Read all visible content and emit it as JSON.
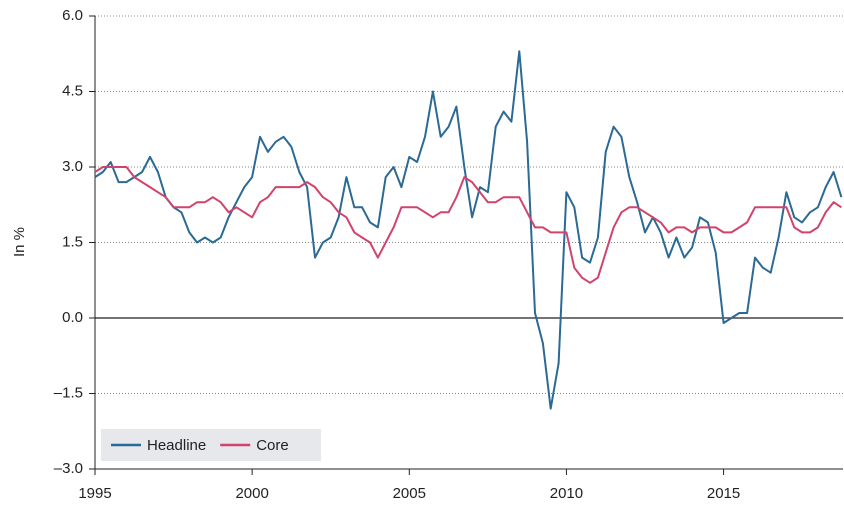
{
  "chart_data": {
    "type": "line",
    "y_label": "In %",
    "x": [
      1995,
      1995.25,
      1995.5,
      1995.75,
      1996,
      1996.25,
      1996.5,
      1996.75,
      1997,
      1997.25,
      1997.5,
      1997.75,
      1998,
      1998.25,
      1998.5,
      1998.75,
      1999,
      1999.25,
      1999.5,
      1999.75,
      2000,
      2000.25,
      2000.5,
      2000.75,
      2001,
      2001.25,
      2001.5,
      2001.75,
      2002,
      2002.25,
      2002.5,
      2002.75,
      2003,
      2003.25,
      2003.5,
      2003.75,
      2004,
      2004.25,
      2004.5,
      2004.75,
      2005,
      2005.25,
      2005.5,
      2005.75,
      2006,
      2006.25,
      2006.5,
      2006.75,
      2007,
      2007.25,
      2007.5,
      2007.75,
      2008,
      2008.25,
      2008.5,
      2008.75,
      2009,
      2009.25,
      2009.5,
      2009.75,
      2010,
      2010.25,
      2010.5,
      2010.75,
      2011,
      2011.25,
      2011.5,
      2011.75,
      2012,
      2012.25,
      2012.5,
      2012.75,
      2013,
      2013.25,
      2013.5,
      2013.75,
      2014,
      2014.25,
      2014.5,
      2014.75,
      2015,
      2015.25,
      2015.5,
      2015.75,
      2016,
      2016.25,
      2016.5,
      2016.75,
      2017,
      2017.25,
      2017.5,
      2017.75,
      2018,
      2018.25,
      2018.5,
      2018.75
    ],
    "series": [
      {
        "name": "Headline",
        "color": "#2b6a94",
        "values": [
          2.8,
          2.9,
          3.1,
          2.7,
          2.7,
          2.8,
          2.9,
          3.2,
          2.9,
          2.4,
          2.2,
          2.1,
          1.7,
          1.5,
          1.6,
          1.5,
          1.6,
          2.0,
          2.3,
          2.6,
          2.8,
          3.6,
          3.3,
          3.5,
          3.6,
          3.4,
          2.9,
          2.6,
          1.2,
          1.5,
          1.6,
          2.0,
          2.8,
          2.2,
          2.2,
          1.9,
          1.8,
          2.8,
          3.0,
          2.6,
          3.2,
          3.1,
          3.6,
          4.5,
          3.6,
          3.8,
          4.2,
          3.0,
          2.0,
          2.6,
          2.5,
          3.8,
          4.1,
          3.9,
          5.3,
          3.5,
          0.1,
          -0.5,
          -1.8,
          -0.9,
          2.5,
          2.2,
          1.2,
          1.1,
          1.6,
          3.3,
          3.8,
          3.6,
          2.8,
          2.3,
          1.7,
          2.0,
          1.7,
          1.2,
          1.6,
          1.2,
          1.4,
          2.0,
          1.9,
          1.3,
          -0.1,
          0.0,
          0.1,
          0.1,
          1.2,
          1.0,
          0.9,
          1.6,
          2.5,
          2.0,
          1.9,
          2.1,
          2.2,
          2.6,
          2.9,
          2.4
        ]
      },
      {
        "name": "Core",
        "color": "#d2436b",
        "values": [
          2.9,
          3.0,
          3.0,
          3.0,
          3.0,
          2.8,
          2.7,
          2.6,
          2.5,
          2.4,
          2.2,
          2.2,
          2.2,
          2.3,
          2.3,
          2.4,
          2.3,
          2.1,
          2.2,
          2.1,
          2.0,
          2.3,
          2.4,
          2.6,
          2.6,
          2.6,
          2.6,
          2.7,
          2.6,
          2.4,
          2.3,
          2.1,
          2.0,
          1.7,
          1.6,
          1.5,
          1.2,
          1.5,
          1.8,
          2.2,
          2.2,
          2.2,
          2.1,
          2.0,
          2.1,
          2.1,
          2.4,
          2.8,
          2.7,
          2.5,
          2.3,
          2.3,
          2.4,
          2.4,
          2.4,
          2.1,
          1.8,
          1.8,
          1.7,
          1.7,
          1.7,
          1.0,
          0.8,
          0.7,
          0.8,
          1.3,
          1.8,
          2.1,
          2.2,
          2.2,
          2.1,
          2.0,
          1.9,
          1.7,
          1.8,
          1.8,
          1.7,
          1.8,
          1.8,
          1.8,
          1.7,
          1.7,
          1.8,
          1.9,
          2.2,
          2.2,
          2.2,
          2.2,
          2.2,
          1.8,
          1.7,
          1.7,
          1.8,
          2.1,
          2.3,
          2.2
        ]
      }
    ],
    "xlim": [
      1995,
      2018.8
    ],
    "xticks": [
      1995,
      2000,
      2005,
      2010,
      2015
    ],
    "ylim": [
      -3,
      6
    ],
    "yticks": [
      {
        "value": -3,
        "label": "–3.0"
      },
      {
        "value": -1.5,
        "label": "–1.5"
      },
      {
        "value": 0,
        "label": "0.0"
      },
      1.5,
      {
        "value": 3,
        "label": "3.0"
      },
      4.5,
      {
        "value": 6,
        "label": "6.0"
      }
    ],
    "grid": true,
    "legend": "lower left"
  }
}
